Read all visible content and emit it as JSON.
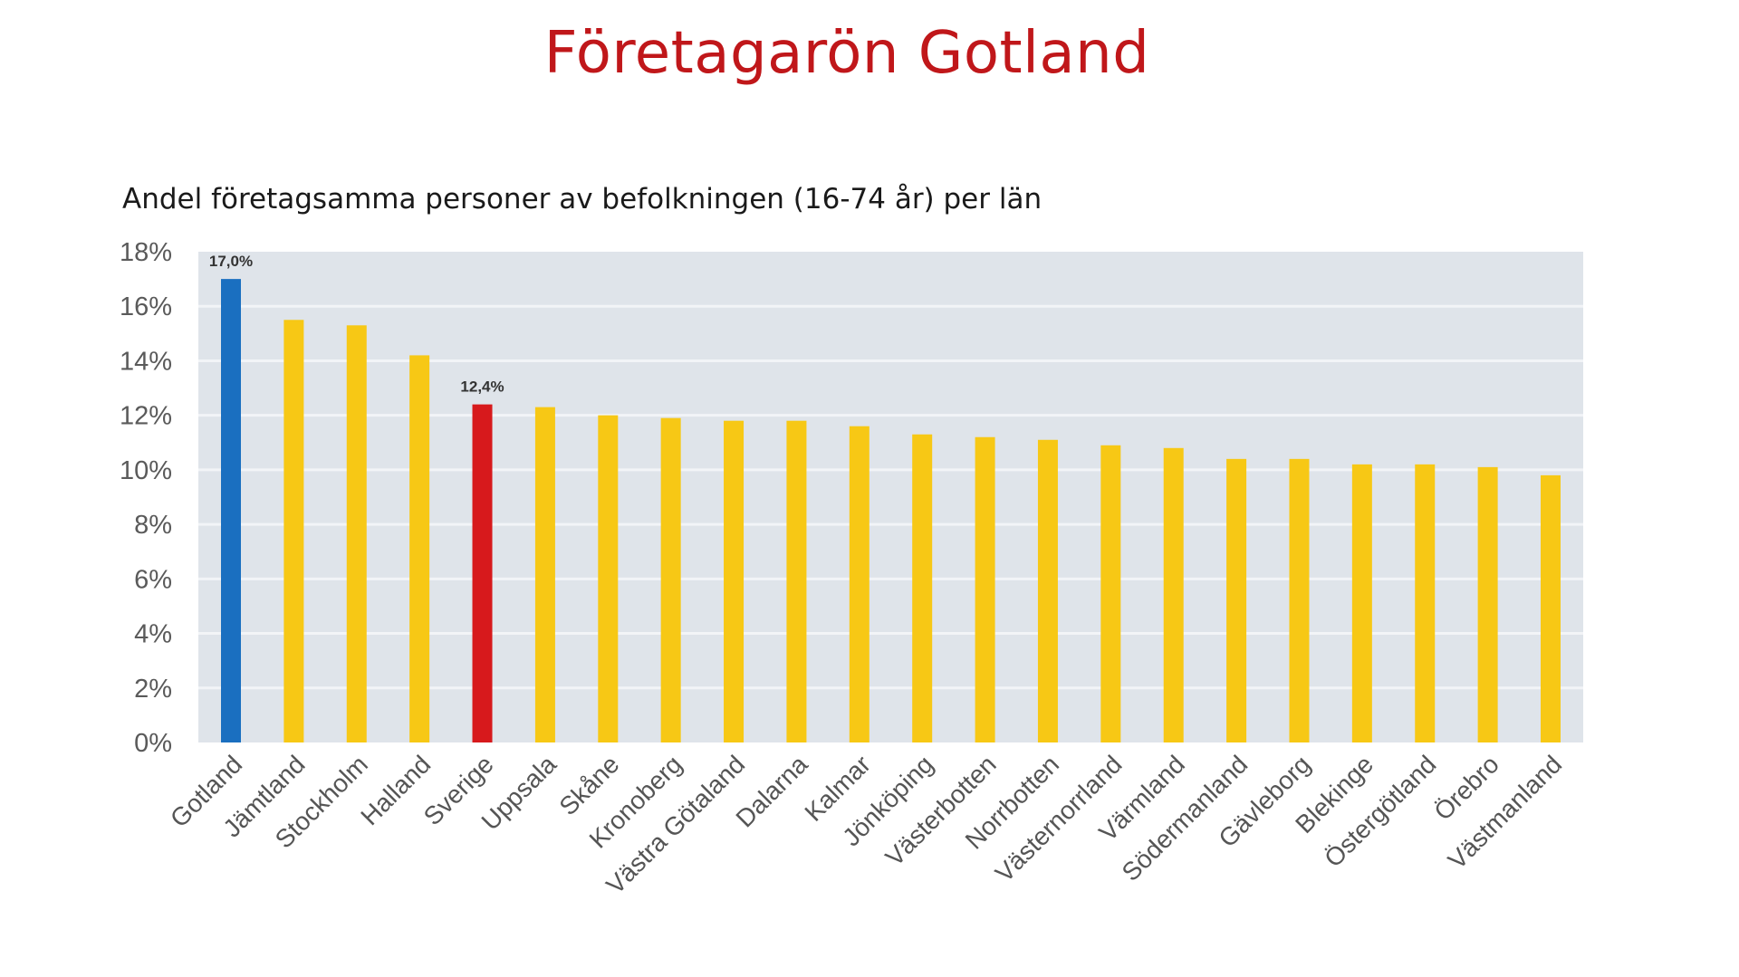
{
  "page": {
    "title": "Företagarön Gotland",
    "subtitle": "Andel företagsamma personer av befolkningen (16-74 år) per län"
  },
  "colors": {
    "title": "#c0171a",
    "highlight_gotland": "#1a6fc0",
    "highlight_sverige": "#d7191c",
    "default_bar": "#f7c815",
    "plot_background": "#dfe4ea",
    "gridline": "#f2f4f7"
  },
  "chart_data": {
    "type": "bar",
    "title": "Andel företagsamma personer av befolkningen (16-74 år) per län",
    "xlabel": "",
    "ylabel": "",
    "ylim": [
      0,
      18
    ],
    "yticks": [
      0,
      2,
      4,
      6,
      8,
      10,
      12,
      14,
      16,
      18
    ],
    "ytick_labels": [
      "0%",
      "2%",
      "4%",
      "6%",
      "8%",
      "10%",
      "12%",
      "14%",
      "16%",
      "18%"
    ],
    "grid": true,
    "legend": "none",
    "unit": "%",
    "categories": [
      "Gotland",
      "Jämtland",
      "Stockholm",
      "Halland",
      "Sverige",
      "Uppsala",
      "Skåne",
      "Kronoberg",
      "Västra Götaland",
      "Dalarna",
      "Kalmar",
      "Jönköping",
      "Västerbotten",
      "Norrbotten",
      "Västernorrland",
      "Värmland",
      "Södermanland",
      "Gävleborg",
      "Blekinge",
      "Östergötland",
      "Örebro",
      "Västmanland"
    ],
    "values": [
      17.0,
      15.5,
      15.3,
      14.2,
      12.4,
      12.3,
      12.0,
      11.9,
      11.8,
      11.8,
      11.6,
      11.3,
      11.2,
      11.1,
      10.9,
      10.8,
      10.4,
      10.4,
      10.2,
      10.2,
      10.1,
      9.8
    ],
    "bar_colors": [
      "highlight_gotland",
      "default_bar",
      "default_bar",
      "default_bar",
      "highlight_sverige",
      "default_bar",
      "default_bar",
      "default_bar",
      "default_bar",
      "default_bar",
      "default_bar",
      "default_bar",
      "default_bar",
      "default_bar",
      "default_bar",
      "default_bar",
      "default_bar",
      "default_bar",
      "default_bar",
      "default_bar",
      "default_bar",
      "default_bar"
    ],
    "data_labels": [
      {
        "category": "Gotland",
        "text": "17,0%"
      },
      {
        "category": "Sverige",
        "text": "12,4%"
      }
    ]
  }
}
